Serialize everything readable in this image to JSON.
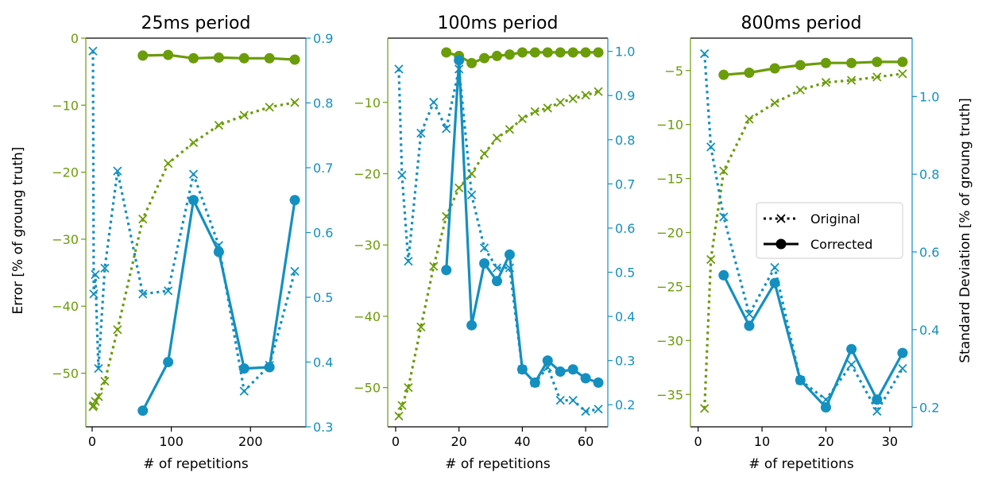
{
  "colors": {
    "error": "#6b9c0a",
    "std": "#1390c0",
    "axis": "#000000"
  },
  "legend": {
    "original": "Original",
    "corrected": "Corrected"
  },
  "y_left_label": "Error [% of groung truth]",
  "y_right_label": "Standard Deviation [% of groung truth]",
  "chart_data": [
    {
      "type": "line",
      "title": "25ms period",
      "xlabel": "# of repetitions",
      "xlim": [
        -8,
        270
      ],
      "xticks": [
        0,
        100,
        200
      ],
      "ylim_left": [
        -58,
        0
      ],
      "yticks_left": [
        0,
        -10,
        -20,
        -30,
        -40,
        -50
      ],
      "ylim_right": [
        0.3,
        0.9
      ],
      "yticks_right": [
        0.3,
        0.4,
        0.5,
        0.6,
        0.7,
        0.8,
        0.9
      ],
      "series": [
        {
          "name": "Error Original",
          "axis": "left",
          "style": "dotted-x",
          "x": [
            1,
            2,
            4,
            8,
            16,
            32,
            64,
            96,
            128,
            160,
            192,
            224,
            256
          ],
          "y": [
            -55,
            -54.8,
            -54.2,
            -53.5,
            -51.2,
            -43.5,
            -27,
            -18.7,
            -15.6,
            -13,
            -11.5,
            -10.3,
            -9.6
          ]
        },
        {
          "name": "Error Corrected",
          "axis": "left",
          "style": "solid-dot",
          "x": [
            64,
            96,
            128,
            160,
            192,
            224,
            256
          ],
          "y": [
            -2.6,
            -2.5,
            -3.0,
            -2.9,
            -3.0,
            -3.0,
            -3.2
          ]
        },
        {
          "name": "Std Original",
          "axis": "right",
          "style": "dotted-x",
          "x": [
            1,
            2,
            4,
            8,
            16,
            32,
            64,
            96,
            128,
            160,
            192,
            224,
            256
          ],
          "y": [
            0.88,
            0.505,
            0.535,
            0.39,
            0.545,
            0.695,
            0.505,
            0.51,
            0.69,
            0.58,
            0.355,
            0.395,
            0.54
          ]
        },
        {
          "name": "Std Corrected",
          "axis": "right",
          "style": "solid-dot",
          "x": [
            64,
            96,
            128,
            160,
            192,
            224,
            256
          ],
          "y": [
            0.325,
            0.4,
            0.65,
            0.57,
            0.39,
            0.392,
            0.65
          ]
        }
      ]
    },
    {
      "type": "line",
      "title": "100ms period",
      "xlabel": "# of repetitions",
      "xlim": [
        -2.5,
        67
      ],
      "xticks": [
        0,
        20,
        40,
        60
      ],
      "ylim_left": [
        -55.5,
        -1
      ],
      "yticks_left": [
        -10,
        -20,
        -30,
        -40,
        -50
      ],
      "ylim_right": [
        0.15,
        1.03
      ],
      "yticks_right": [
        0.2,
        0.3,
        0.4,
        0.5,
        0.6,
        0.7,
        0.8,
        0.9,
        1.0
      ],
      "series": [
        {
          "name": "Error Original",
          "axis": "left",
          "style": "dotted-x",
          "x": [
            1,
            2,
            4,
            8,
            12,
            16,
            20,
            24,
            28,
            32,
            36,
            40,
            44,
            48,
            52,
            56,
            60,
            64
          ],
          "y": [
            -54,
            -52.5,
            -50,
            -41.5,
            -33,
            -26,
            -22,
            -20,
            -17.2,
            -15,
            -13.8,
            -12.3,
            -11.3,
            -10.8,
            -10,
            -9.5,
            -9,
            -8.5
          ]
        },
        {
          "name": "Error Corrected",
          "axis": "left",
          "style": "solid-dot",
          "x": [
            16,
            20,
            24,
            28,
            32,
            36,
            40,
            44,
            48,
            52,
            56,
            60,
            64
          ],
          "y": [
            -3,
            -3.5,
            -4.5,
            -3.8,
            -3.5,
            -3.3,
            -3.0,
            -3.0,
            -3.0,
            -3.0,
            -3.0,
            -3.0,
            -3.0
          ]
        },
        {
          "name": "Std Original",
          "axis": "right",
          "style": "dotted-x",
          "x": [
            1,
            2,
            4,
            8,
            12,
            16,
            20,
            24,
            28,
            32,
            36,
            40,
            44,
            48,
            52,
            56,
            60,
            64
          ],
          "y": [
            0.96,
            0.72,
            0.525,
            0.815,
            0.885,
            0.825,
            0.96,
            0.675,
            0.555,
            0.51,
            0.51,
            0.28,
            0.25,
            0.285,
            0.21,
            0.21,
            0.185,
            0.19
          ]
        },
        {
          "name": "Std Corrected",
          "axis": "right",
          "style": "solid-dot",
          "x": [
            16,
            20,
            24,
            28,
            32,
            36,
            40,
            44,
            48,
            52,
            56,
            60,
            64
          ],
          "y": [
            0.505,
            0.98,
            0.38,
            0.52,
            0.48,
            0.54,
            0.28,
            0.25,
            0.3,
            0.275,
            0.28,
            0.26,
            0.25
          ]
        }
      ]
    },
    {
      "type": "line",
      "title": "800ms period",
      "xlabel": "# of repetitions",
      "xlim": [
        -1.2,
        33.5
      ],
      "xticks": [
        0,
        10,
        20,
        30
      ],
      "ylim_left": [
        -38,
        -2
      ],
      "yticks_left": [
        -5,
        -10,
        -15,
        -20,
        -25,
        -30,
        -35
      ],
      "ylim_right": [
        0.15,
        1.15
      ],
      "yticks_right": [
        0.2,
        0.4,
        0.6,
        0.8,
        1.0
      ],
      "series": [
        {
          "name": "Error Original",
          "axis": "left",
          "style": "dotted-x",
          "x": [
            1,
            2,
            4,
            8,
            12,
            16,
            20,
            24,
            28,
            32
          ],
          "y": [
            -36.3,
            -22.5,
            -14.3,
            -9.5,
            -8.0,
            -6.8,
            -6.1,
            -5.9,
            -5.6,
            -5.3
          ]
        },
        {
          "name": "Error Corrected",
          "axis": "left",
          "style": "solid-dot",
          "x": [
            4,
            8,
            12,
            16,
            20,
            24,
            28,
            32
          ],
          "y": [
            -5.4,
            -5.2,
            -4.8,
            -4.5,
            -4.3,
            -4.3,
            -4.2,
            -4.2
          ]
        },
        {
          "name": "Std Original",
          "axis": "right",
          "style": "dotted-x",
          "x": [
            1,
            2,
            4,
            8,
            12,
            16,
            20,
            24,
            28,
            32
          ],
          "y": [
            1.11,
            0.87,
            0.69,
            0.44,
            0.56,
            0.27,
            0.22,
            0.31,
            0.19,
            0.3
          ]
        },
        {
          "name": "Std Corrected",
          "axis": "right",
          "style": "solid-dot",
          "x": [
            4,
            8,
            12,
            16,
            20,
            24,
            28,
            32
          ],
          "y": [
            0.54,
            0.41,
            0.52,
            0.27,
            0.2,
            0.35,
            0.22,
            0.34
          ]
        }
      ]
    }
  ]
}
